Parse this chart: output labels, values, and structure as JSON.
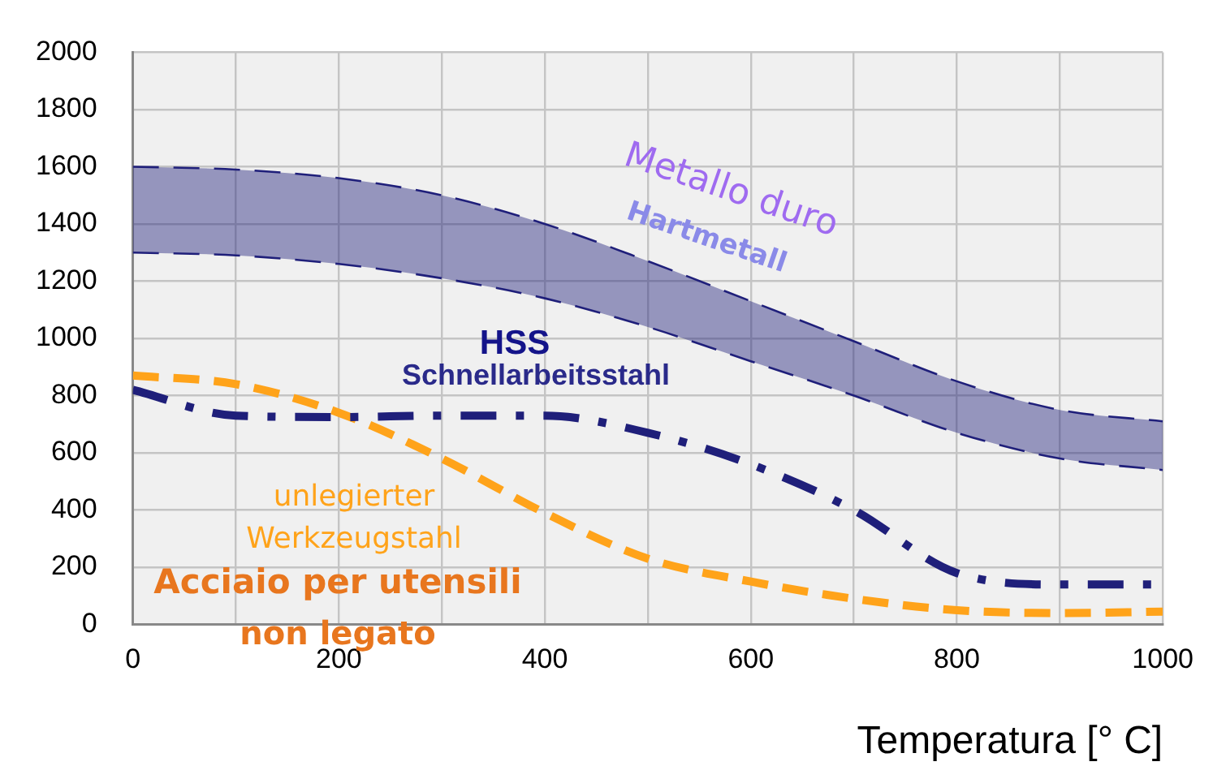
{
  "chart_data": {
    "type": "line",
    "xlabel": "Temperatura [° C]",
    "x": [
      0,
      100,
      200,
      300,
      400,
      500,
      600,
      700,
      800,
      900,
      1000
    ],
    "series": [
      {
        "type": "line",
        "color": "#1f1f7a",
        "values": [
          1600,
          1590,
          1560,
          1500,
          1400,
          1270,
          1130,
          990,
          850,
          750,
          710
        ],
        "lower": [
          1300,
          1290,
          1260,
          1210,
          1140,
          1040,
          920,
          800,
          670,
          580,
          540
        ],
        "upper": [
          1600,
          1590,
          1560,
          1500,
          1400,
          1270,
          1130,
          990,
          850,
          750,
          710
        ],
        "line_style": "dashed"
      },
      {
        "type": "line",
        "color": "#1f1f7a",
        "values": [
          1300,
          1290,
          1260,
          1210,
          1140,
          1040,
          920,
          800,
          670,
          580,
          540
        ],
        "line_style": "dashed"
      },
      {
        "type": "line",
        "color": "#1f1f7a",
        "values": [
          820,
          730,
          725,
          730,
          730,
          670,
          560,
          400,
          180,
          140,
          140
        ],
        "line_style": "dashdot"
      },
      {
        "type": "line",
        "color": "#ffa31a",
        "values": [
          870,
          840,
          740,
          580,
          390,
          230,
          150,
          90,
          50,
          40,
          45
        ],
        "line_style": "dashed"
      }
    ],
    "xlim": [
      0,
      1000
    ],
    "ylim": [
      0,
      2000
    ],
    "xticks": [
      0,
      {
        "value": 100,
        "label": null
      },
      200,
      {
        "value": 300,
        "label": null
      },
      400,
      {
        "value": 500,
        "label": null
      },
      600,
      {
        "value": 700,
        "label": null
      },
      800,
      {
        "value": 900,
        "label": null
      },
      1000
    ],
    "yticks": [
      0,
      200,
      400,
      600,
      800,
      1000,
      1200,
      1400,
      1600,
      1800,
      2000
    ],
    "grid": true,
    "legend": false,
    "marker": "none",
    "annotations": [
      "Metallo duro",
      "Hartmetall",
      "HSS",
      "Schnellarbeitsstahl",
      "unlegierter",
      "Werkzeugstahl",
      "Acciaio per utensili",
      "non legato"
    ]
  }
}
